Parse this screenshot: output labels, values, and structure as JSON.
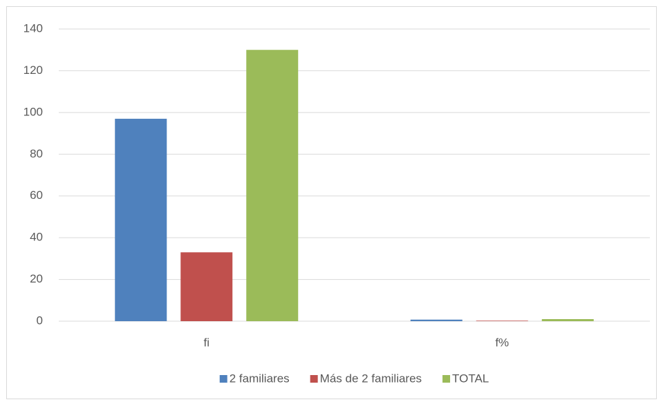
{
  "chart_data": {
    "type": "bar",
    "categories": [
      "fi",
      "f%"
    ],
    "series": [
      {
        "name": "2 familiares",
        "color": "#4f81bd",
        "values": [
          97,
          0.75
        ]
      },
      {
        "name": "Más de 2 familiares",
        "color": "#c0504d",
        "values": [
          33,
          0.25
        ]
      },
      {
        "name": "TOTAL",
        "color": "#9bbb59",
        "values": [
          130,
          1
        ]
      }
    ],
    "ylim": [
      0,
      140
    ],
    "yticks": [
      0,
      20,
      40,
      60,
      80,
      100,
      120,
      140
    ],
    "grid": true,
    "legend": "bottom"
  }
}
